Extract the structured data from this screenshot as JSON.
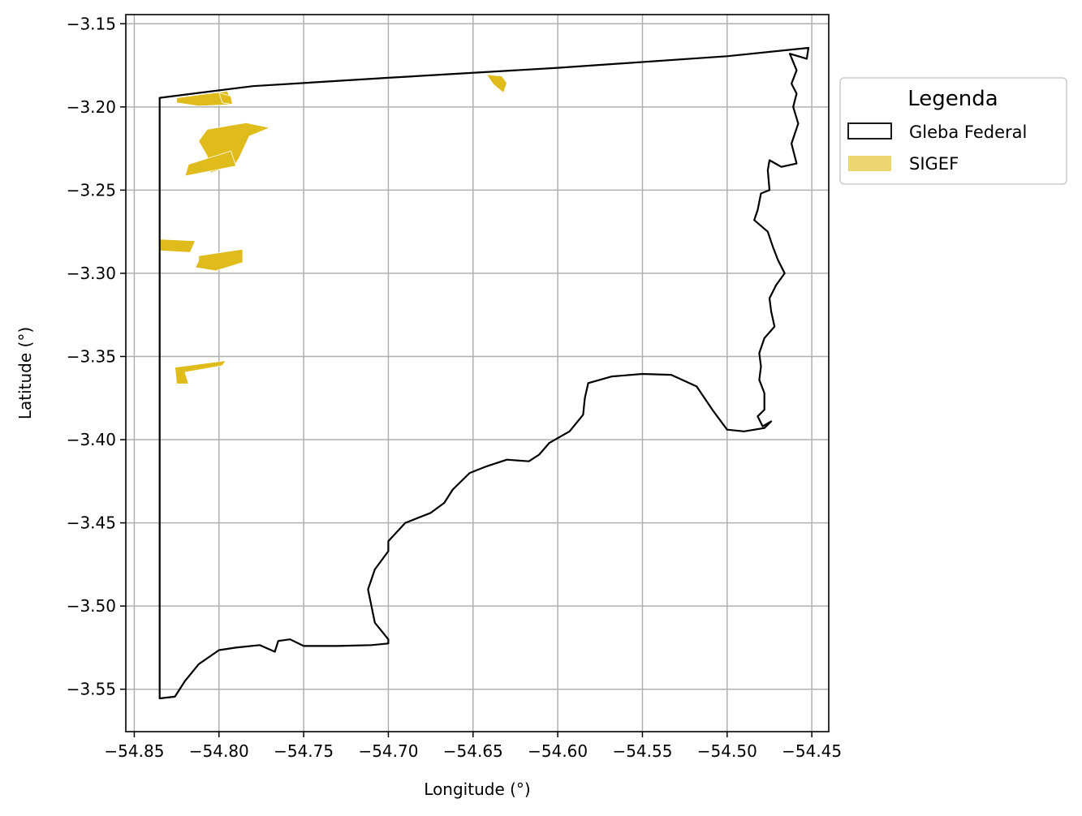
{
  "chart_data": {
    "type": "map",
    "xlabel": "Longitude (°)",
    "ylabel": "Latitude (°)",
    "xlim": [
      -54.855,
      -54.44
    ],
    "ylim": [
      -3.5755,
      -3.1445
    ],
    "grid": true,
    "x_ticks": [
      -54.85,
      -54.8,
      -54.75,
      -54.7,
      -54.65,
      -54.6,
      -54.55,
      -54.5,
      -54.45
    ],
    "x_tick_labels": [
      "−54.85",
      "−54.80",
      "−54.75",
      "−54.70",
      "−54.65",
      "−54.60",
      "−54.55",
      "−54.50",
      "−54.45"
    ],
    "y_ticks": [
      -3.15,
      -3.2,
      -3.25,
      -3.3,
      -3.35,
      -3.4,
      -3.45,
      -3.5,
      -3.55
    ],
    "y_tick_labels": [
      "−3.15",
      "−3.20",
      "−3.25",
      "−3.30",
      "−3.35",
      "−3.40",
      "−3.45",
      "−3.50",
      "−3.55"
    ],
    "legend": {
      "title": "Legenda",
      "placement": "outside-right-top",
      "entries": [
        {
          "label": "Gleba Federal",
          "style": "outline",
          "color": "#000000"
        },
        {
          "label": "SIGEF",
          "style": "fill",
          "color": "#ecd573"
        }
      ]
    },
    "colors": {
      "gleba_outline": "#000000",
      "sigef_fill": "#e0bb1c",
      "grid": "#b0b0b0"
    },
    "gleba": [
      [
        -54.835,
        -3.1945
      ],
      [
        -54.78,
        -3.1875
      ],
      [
        -54.7,
        -3.1825
      ],
      [
        -54.6,
        -3.1765
      ],
      [
        -54.5,
        -3.1695
      ],
      [
        -54.452,
        -3.1645
      ],
      [
        -54.453,
        -3.171
      ],
      [
        -54.463,
        -3.168
      ],
      [
        -54.459,
        -3.178
      ],
      [
        -54.462,
        -3.186
      ],
      [
        -54.459,
        -3.192
      ],
      [
        -54.461,
        -3.2
      ],
      [
        -54.458,
        -3.21
      ],
      [
        -54.462,
        -3.222
      ],
      [
        -54.459,
        -3.234
      ],
      [
        -54.468,
        -3.236
      ],
      [
        -54.475,
        -3.232
      ],
      [
        -54.476,
        -3.238
      ],
      [
        -54.475,
        -3.25
      ],
      [
        -54.48,
        -3.252
      ],
      [
        -54.482,
        -3.262
      ],
      [
        -54.484,
        -3.268
      ],
      [
        -54.476,
        -3.275
      ],
      [
        -54.473,
        -3.284
      ],
      [
        -54.47,
        -3.292
      ],
      [
        -54.466,
        -3.3
      ],
      [
        -54.471,
        -3.307
      ],
      [
        -54.475,
        -3.315
      ],
      [
        -54.474,
        -3.323
      ],
      [
        -54.472,
        -3.332
      ],
      [
        -54.478,
        -3.339
      ],
      [
        -54.481,
        -3.348
      ],
      [
        -54.48,
        -3.356
      ],
      [
        -54.481,
        -3.364
      ],
      [
        -54.478,
        -3.372
      ],
      [
        -54.478,
        -3.382
      ],
      [
        -54.482,
        -3.386
      ],
      [
        -54.479,
        -3.392
      ],
      [
        -54.474,
        -3.389
      ],
      [
        -54.478,
        -3.393
      ],
      [
        -54.49,
        -3.395
      ],
      [
        -54.5,
        -3.394
      ],
      [
        -54.508,
        -3.383
      ],
      [
        -54.518,
        -3.368
      ],
      [
        -54.533,
        -3.361
      ],
      [
        -54.55,
        -3.3605
      ],
      [
        -54.568,
        -3.362
      ],
      [
        -54.582,
        -3.366
      ],
      [
        -54.584,
        -3.375
      ],
      [
        -54.585,
        -3.385
      ],
      [
        -54.593,
        -3.395
      ],
      [
        -54.605,
        -3.402
      ],
      [
        -54.611,
        -3.409
      ],
      [
        -54.617,
        -3.413
      ],
      [
        -54.63,
        -3.412
      ],
      [
        -54.642,
        -3.416
      ],
      [
        -54.652,
        -3.42
      ],
      [
        -54.662,
        -3.43
      ],
      [
        -54.667,
        -3.438
      ],
      [
        -54.675,
        -3.444
      ],
      [
        -54.69,
        -3.45
      ],
      [
        -54.7,
        -3.461
      ],
      [
        -54.7,
        -3.467
      ],
      [
        -54.708,
        -3.478
      ],
      [
        -54.712,
        -3.49
      ],
      [
        -54.708,
        -3.51
      ],
      [
        -54.7,
        -3.52
      ],
      [
        -54.7,
        -3.5225
      ],
      [
        -54.71,
        -3.5235
      ],
      [
        -54.73,
        -3.524
      ],
      [
        -54.75,
        -3.524
      ],
      [
        -54.758,
        -3.52
      ],
      [
        -54.765,
        -3.521
      ],
      [
        -54.767,
        -3.5275
      ],
      [
        -54.776,
        -3.5235
      ],
      [
        -54.79,
        -3.525
      ],
      [
        -54.8,
        -3.5265
      ],
      [
        -54.812,
        -3.535
      ],
      [
        -54.82,
        -3.545
      ],
      [
        -54.826,
        -3.5545
      ],
      [
        -54.835,
        -3.5555
      ]
    ],
    "sigef": [
      [
        [
          -54.825,
          -3.1945
        ],
        [
          -54.795,
          -3.1905
        ],
        [
          -54.792,
          -3.1985
        ],
        [
          -54.812,
          -3.1995
        ],
        [
          -54.825,
          -3.1975
        ]
      ],
      [
        [
          -54.8,
          -3.1915
        ],
        [
          -54.793,
          -3.1935
        ],
        [
          -54.792,
          -3.1985
        ],
        [
          -54.798,
          -3.1975
        ]
      ],
      [
        [
          -54.807,
          -3.2135
        ],
        [
          -54.784,
          -3.2095
        ],
        [
          -54.77,
          -3.2125
        ],
        [
          -54.782,
          -3.2175
        ],
        [
          -54.788,
          -3.2305
        ],
        [
          -54.791,
          -3.2355
        ],
        [
          -54.805,
          -3.2395
        ],
        [
          -54.807,
          -3.2295
        ],
        [
          -54.812,
          -3.2205
        ]
      ],
      [
        [
          -54.82,
          -3.2415
        ],
        [
          -54.79,
          -3.2355
        ],
        [
          -54.793,
          -3.2265
        ],
        [
          -54.818,
          -3.2345
        ]
      ],
      [
        [
          -54.835,
          -3.2795
        ],
        [
          -54.814,
          -3.2805
        ],
        [
          -54.817,
          -3.2875
        ],
        [
          -54.835,
          -3.2865
        ]
      ],
      [
        [
          -54.812,
          -3.2895
        ],
        [
          -54.786,
          -3.2855
        ],
        [
          -54.786,
          -3.2935
        ],
        [
          -54.802,
          -3.2985
        ],
        [
          -54.814,
          -3.2965
        ],
        [
          -54.812,
          -3.2925
        ]
      ],
      [
        [
          -54.826,
          -3.3565
        ],
        [
          -54.796,
          -3.3525
        ],
        [
          -54.798,
          -3.3555
        ],
        [
          -54.82,
          -3.3595
        ],
        [
          -54.818,
          -3.3665
        ],
        [
          -54.825,
          -3.3665
        ]
      ],
      [
        [
          -54.642,
          -3.1805
        ],
        [
          -54.633,
          -3.1815
        ],
        [
          -54.63,
          -3.1855
        ],
        [
          -54.632,
          -3.1915
        ],
        [
          -54.638,
          -3.1865
        ]
      ]
    ]
  }
}
